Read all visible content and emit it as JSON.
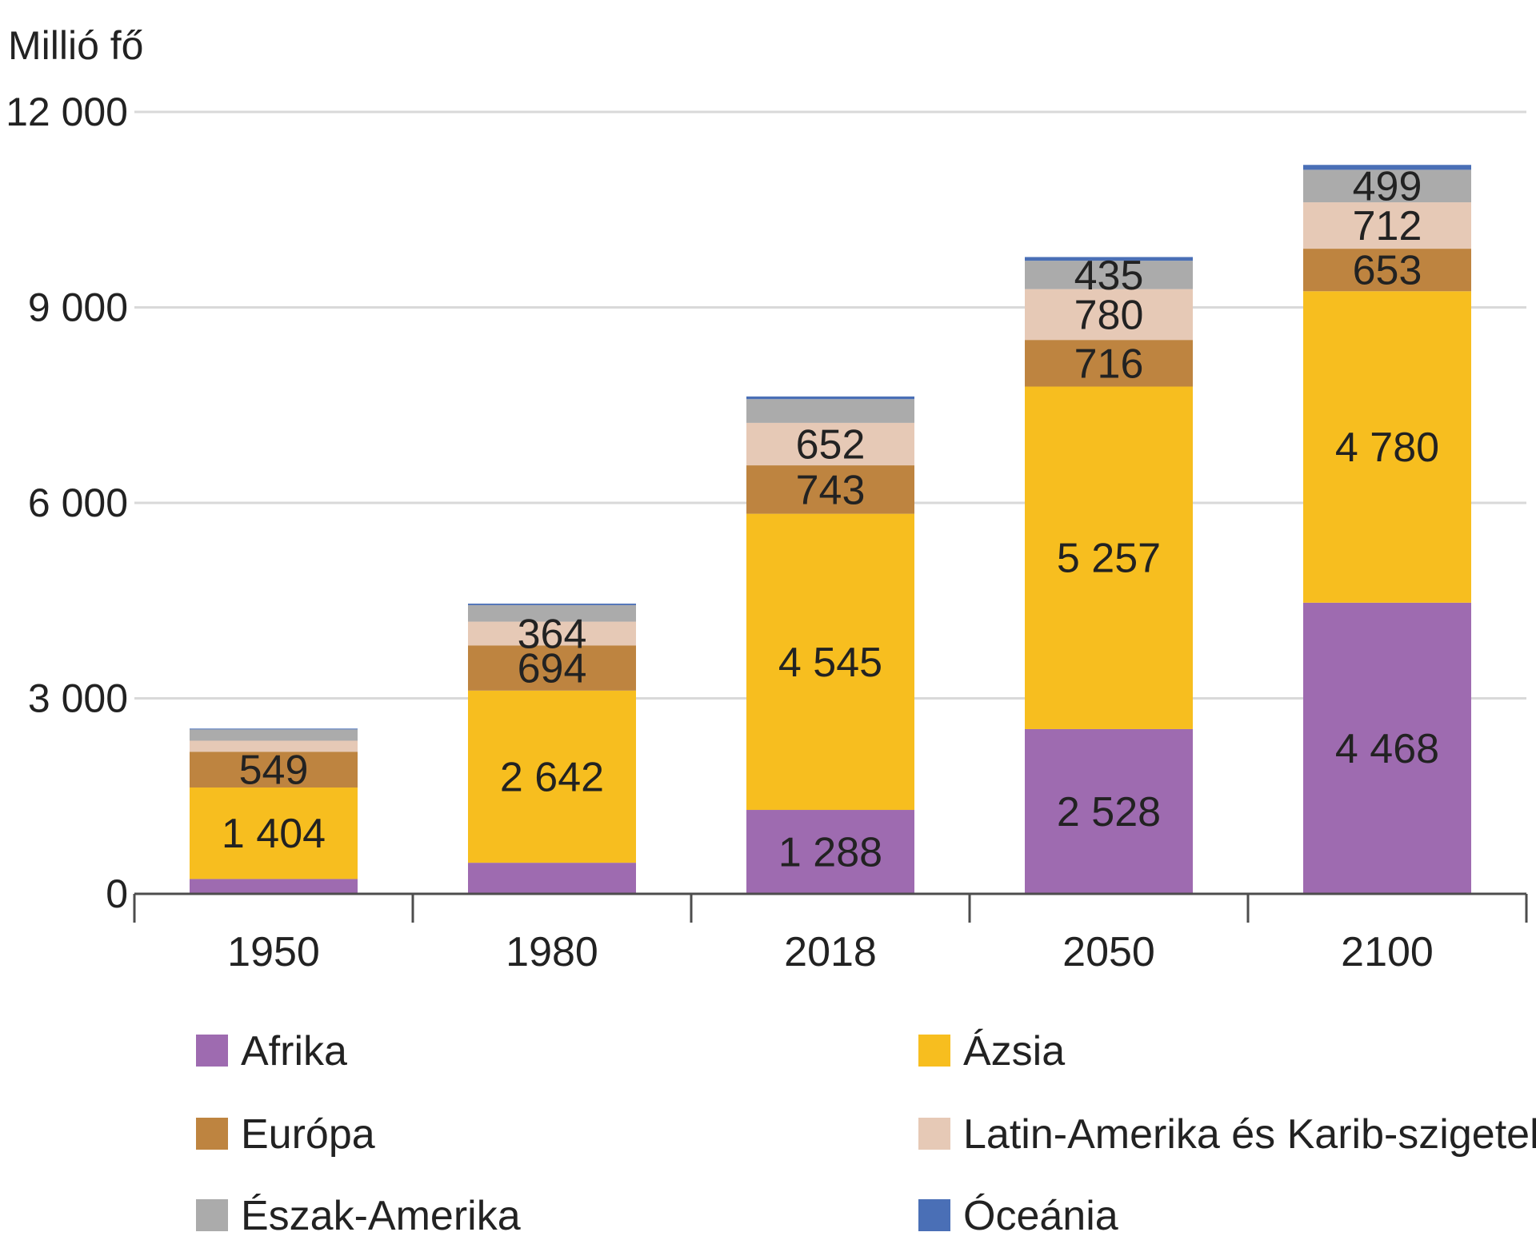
{
  "chart_data": {
    "type": "bar",
    "stacked": true,
    "title": "",
    "ylabel": "Millió fő",
    "xlabel": "",
    "ylim": [
      0,
      12000
    ],
    "yticks": [
      0,
      3000,
      6000,
      9000,
      12000
    ],
    "ytick_labels": [
      "0",
      "3 000",
      "6 000",
      "9 000",
      "12 000"
    ],
    "grid": true,
    "legend_position": "bottom",
    "categories": [
      "1950",
      "1980",
      "2018",
      "2050",
      "2100"
    ],
    "series": [
      {
        "name": "Afrika",
        "color": "#9E6BB0",
        "values": [
          228,
          477,
          1288,
          2528,
          4468
        ],
        "labels": [
          "",
          "",
          "1 288",
          "2 528",
          "4 468"
        ]
      },
      {
        "name": "Ázsia",
        "color": "#F7BE1F",
        "values": [
          1404,
          2642,
          4545,
          5257,
          4780
        ],
        "labels": [
          "1 404",
          "2 642",
          "4 545",
          "5 257",
          "4 780"
        ]
      },
      {
        "name": "Európa",
        "color": "#BE8440",
        "values": [
          549,
          694,
          743,
          716,
          653
        ],
        "labels": [
          "549",
          "694",
          "743",
          "716",
          "653"
        ]
      },
      {
        "name": "Latin-Amerika és Karib-szigetek",
        "color": "#E6C9B6",
        "values": [
          169,
          364,
          652,
          780,
          712
        ],
        "labels": [
          "",
          "364",
          "652",
          "780",
          "712"
        ]
      },
      {
        "name": "Észak-Amerika",
        "color": "#ABABAB",
        "values": [
          173,
          254,
          364,
          435,
          499
        ],
        "labels": [
          "",
          "",
          "",
          "435",
          "499"
        ]
      },
      {
        "name": "Óceánia",
        "color": "#4A6FB6",
        "values": [
          13,
          23,
          41,
          57,
          75
        ],
        "labels": [
          "",
          "",
          "",
          "",
          ""
        ]
      }
    ]
  }
}
